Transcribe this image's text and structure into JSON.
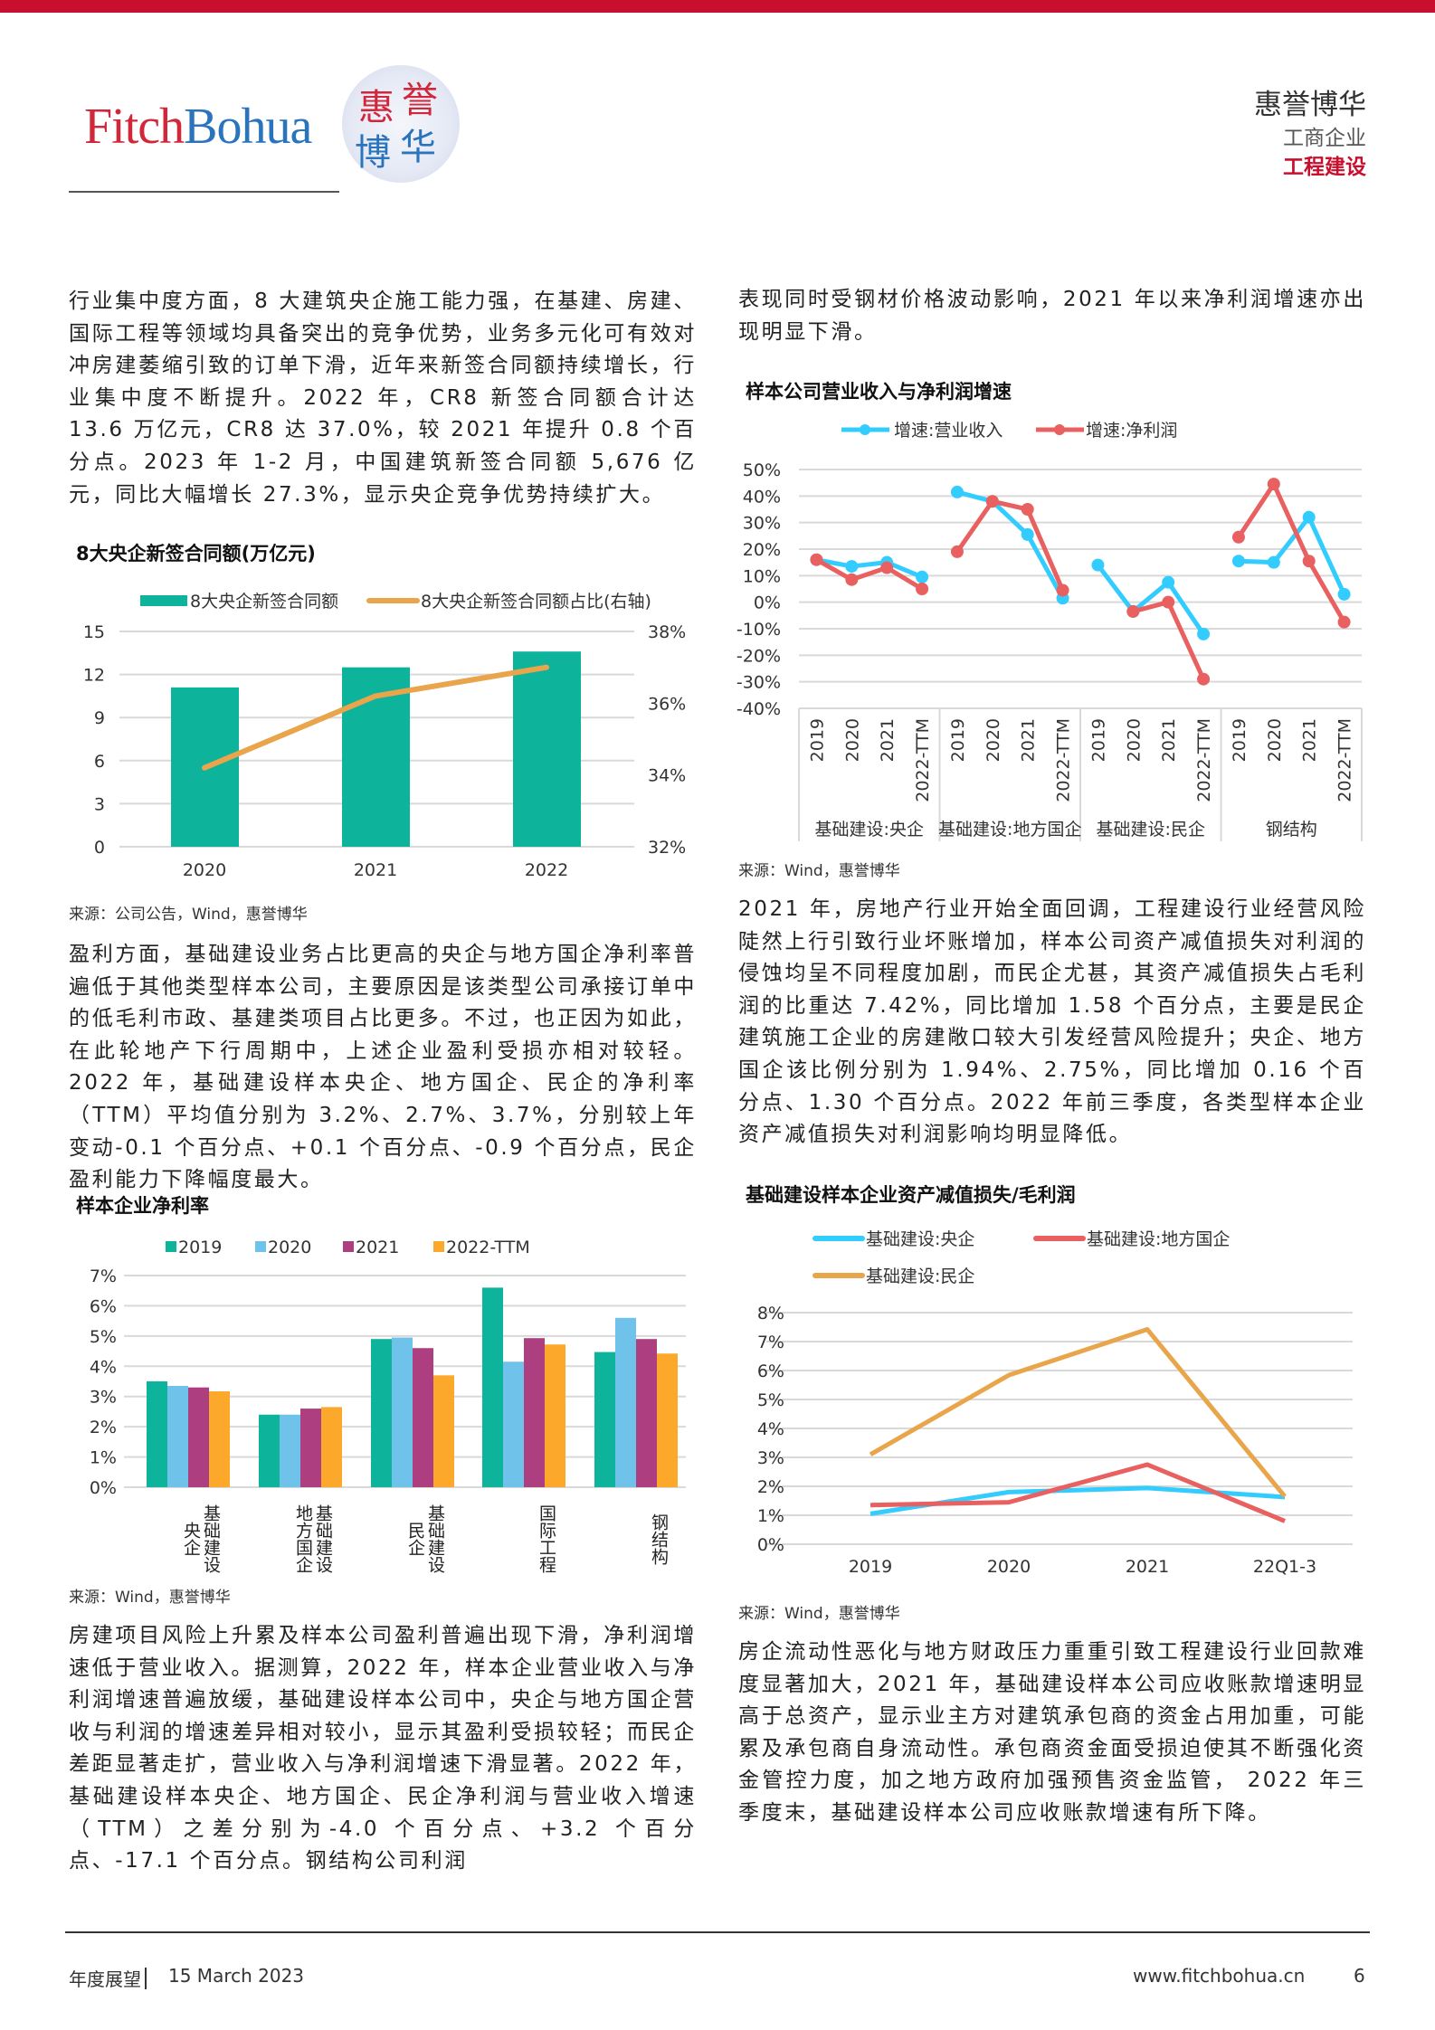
{
  "header": {
    "logo_fitch": "Fitch",
    "logo_bohua": "Bohua",
    "logo_seal": [
      "惠",
      "誉",
      "博",
      "华"
    ],
    "brand": "惠誉博华",
    "sector": "工商企业",
    "subsector": "工程建设"
  },
  "left": {
    "p1": "行业集中度方面，8 大建筑央企施工能力强，在基建、房建、国际工程等领域均具备突出的竞争优势，业务多元化可有效对冲房建萎缩引致的订单下滑，近年来新签合同额持续增长，行业集中度不断提升。2022 年，CR8 新签合同额合计达 13.6 万亿元，CR8 达 37.0%，较 2021 年提升 0.8 个百分点。2023 年 1-2 月，中国建筑新签合同额 5,676 亿元，同比大幅增长 27.3%，显示央企竞争优势持续扩大。",
    "chart1_title": "8大央企新签合同额(万亿元)",
    "source1": "来源：公司公告，Wind，惠誉博华",
    "p2": "盈利方面，基础建设业务占比更高的央企与地方国企净利率普遍低于其他类型样本公司，主要原因是该类型公司承接订单中的低毛利市政、基建类项目占比更多。不过，也正因为如此，在此轮地产下行周期中，上述企业盈利受损亦相对较轻。2022 年，基础建设样本央企、地方国企、民企的净利率（TTM）平均值分别为 3.2%、2.7%、3.7%，分别较上年变动-0.1 个百分点、+0.1 个百分点、-0.9 个百分点，民企盈利能力下降幅度最大。",
    "chart3_title": "样本企业净利率",
    "source3": "来源：Wind，惠誉博华",
    "p3": "房建项目风险上升累及样本公司盈利普遍出现下滑，净利润增速低于营业收入。据测算，2022 年，样本企业营业收入与净利润增速普遍放缓，基础建设样本公司中，央企与地方国企营收与利润的增速差异相对较小，显示其盈利受损较轻；而民企差距显著走扩，营业收入与净利润增速下滑显著。2022 年，基础建设样本央企、地方国企、民企净利润与营业收入增速（TTM）之差分别为-4.0 个百分点、+3.2 个百分点、-17.1 个百分点。钢结构公司利润"
  },
  "right": {
    "p1": "表现同时受钢材价格波动影响，2021 年以来净利润增速亦出现明显下滑。",
    "chart2_title": "样本公司营业收入与净利润增速",
    "source2": "来源：Wind，惠誉博华",
    "p2": "2021 年，房地产行业开始全面回调，工程建设行业经营风险陡然上行引致行业坏账增加，样本公司资产减值损失对利润的侵蚀均呈不同程度加剧，而民企尤甚，其资产减值损失占毛利润的比重达 7.42%，同比增加 1.58 个百分点，主要是民企建筑施工企业的房建敞口较大引发经营风险提升；央企、地方国企该比例分别为 1.94%、2.75%，同比增加 0.16 个百分点、1.30 个百分点。2022 年前三季度，各类型样本企业资产减值损失对利润影响均明显降低。",
    "chart4_title": "基础建设样本企业资产减值损失/毛利润",
    "source4": "来源：Wind，惠誉博华",
    "p3": "房企流动性恶化与地方财政压力重重引致工程建设行业回款难度显著加大，2021 年，基础建设样本公司应收账款增速明显高于总资产，显示业主方对建筑承包商的资金占用加重，可能累及承包商自身流动性。承包商资金面受损迫使其不断强化资金管控力度，加之地方政府加强预售资金监管， 2022 年三季度末，基础建设样本公司应收账款增速有所下降。"
  },
  "footer": {
    "label": "年度展望",
    "date": "15 March 2023",
    "url": "www.fitchbohua.cn",
    "page": "6"
  },
  "colors": {
    "brand_red": "#c8102e",
    "grid": "#d9d9d9"
  },
  "chart_data": [
    {
      "type": "bar+line",
      "title": "8大央企新签合同额(万亿元)",
      "categories": [
        "2020",
        "2021",
        "2022"
      ],
      "series": [
        {
          "name": "8大央企新签合同额",
          "type": "bar",
          "axis": "left",
          "color": "#0db39b",
          "values": [
            11.1,
            12.5,
            13.6
          ]
        },
        {
          "name": "8大央企新签合同额占比(右轴)",
          "type": "line",
          "axis": "right",
          "color": "#e8a54b",
          "values": [
            34.2,
            36.2,
            37.0
          ]
        }
      ],
      "ylim": [
        0,
        15
      ],
      "yticks": [
        "0",
        "3",
        "6",
        "9",
        "12",
        "15"
      ],
      "y2lim": [
        32,
        38
      ],
      "y2ticks": [
        "32%",
        "34%",
        "36%",
        "38%"
      ],
      "legend": "top",
      "grid": true
    },
    {
      "type": "line",
      "title": "样本公司营业收入与净利润增速",
      "groups": [
        "基础建设:央企",
        "基础建设:地方国企",
        "基础建设:民企",
        "钢结构"
      ],
      "categories": [
        "2019",
        "2020",
        "2021",
        "2022-TTM"
      ],
      "series": [
        {
          "name": "增速:营业收入",
          "color": "#33ccff",
          "values": [
            [
              16,
              13.5,
              15,
              9.5
            ],
            [
              41.5,
              38,
              25.5,
              1.5
            ],
            [
              14,
              -3.5,
              7.5,
              -12
            ],
            [
              15.5,
              15,
              32,
              3
            ]
          ]
        },
        {
          "name": "增速:净利润",
          "color": "#e8605f",
          "values": [
            [
              16,
              8.5,
              13,
              5
            ],
            [
              19,
              38,
              35,
              4.5
            ],
            [
              null,
              -3.5,
              0,
              -29
            ],
            [
              24.5,
              44.5,
              15.5,
              -7.5
            ]
          ]
        }
      ],
      "ylim": [
        -40,
        50
      ],
      "yticks": [
        "50%",
        "40%",
        "30%",
        "20%",
        "10%",
        "0%",
        "-10%",
        "-20%",
        "-30%",
        "-40%"
      ],
      "legend": "top",
      "grid": true
    },
    {
      "type": "bar",
      "title": "样本企业净利率",
      "categories": [
        "基础建设央企",
        "基础建设地方国企",
        "基础建设民企",
        "国际工程",
        "钢结构"
      ],
      "series": [
        {
          "name": "2019",
          "color": "#0db39b",
          "values": [
            3.5,
            2.4,
            4.9,
            6.6,
            4.47
          ]
        },
        {
          "name": "2020",
          "color": "#6fc2ea",
          "values": [
            3.35,
            2.4,
            4.95,
            4.15,
            5.6
          ]
        },
        {
          "name": "2021",
          "color": "#ad3f80",
          "values": [
            3.3,
            2.6,
            4.6,
            4.93,
            4.9
          ]
        },
        {
          "name": "2022-TTM",
          "color": "#fca82a",
          "values": [
            3.17,
            2.65,
            3.7,
            4.72,
            4.42
          ]
        }
      ],
      "ylim": [
        0,
        7
      ],
      "yticks": [
        "0%",
        "1%",
        "2%",
        "3%",
        "4%",
        "5%",
        "6%",
        "7%"
      ],
      "legend": "top",
      "grid": true
    },
    {
      "type": "line",
      "title": "基础建设样本企业资产减值损失/毛利润",
      "categories": [
        "2019",
        "2020",
        "2021",
        "22Q1-3"
      ],
      "series": [
        {
          "name": "基础建设:央企",
          "color": "#33ccff",
          "values": [
            1.05,
            1.8,
            1.94,
            1.63
          ]
        },
        {
          "name": "基础建设:地方国企",
          "color": "#e8605f",
          "values": [
            1.35,
            1.45,
            2.75,
            0.8
          ]
        },
        {
          "name": "基础建设:民企",
          "color": "#e8a54b",
          "values": [
            3.1,
            5.84,
            7.42,
            1.65
          ]
        }
      ],
      "ylim": [
        0,
        8
      ],
      "yticks": [
        "0%",
        "1%",
        "2%",
        "3%",
        "4%",
        "5%",
        "6%",
        "7%",
        "8%"
      ],
      "legend": "top",
      "grid": true
    }
  ]
}
